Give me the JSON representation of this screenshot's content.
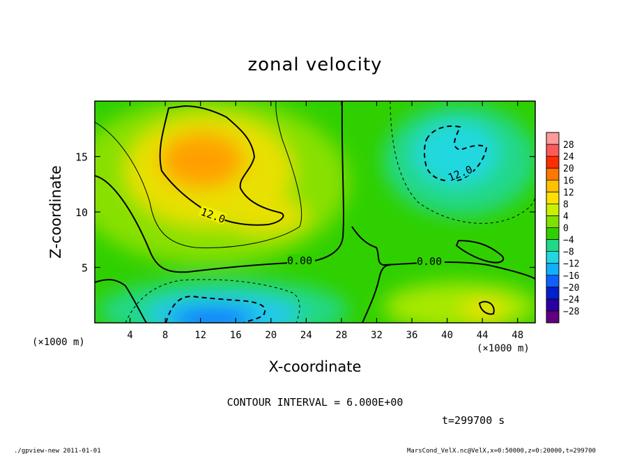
{
  "chart_data": {
    "type": "heatmap",
    "title": "zonal velocity",
    "xlabel": "X-coordinate",
    "ylabel": "Z-coordinate",
    "x_unit": "(×1000 m)",
    "x_range": [
      0,
      50
    ],
    "z_range": [
      0,
      20
    ],
    "x_ticks": [
      "4",
      "8",
      "12",
      "16",
      "20",
      "24",
      "28",
      "32",
      "36",
      "40",
      "44",
      "48"
    ],
    "y_ticks": [
      "5",
      "10",
      "15"
    ],
    "colorbar_levels": [
      "28",
      "24",
      "20",
      "16",
      "12",
      "8",
      "4",
      "0",
      "−4",
      "−8",
      "−12",
      "−16",
      "−20",
      "−24",
      "−28"
    ],
    "colorbar_colors": [
      "#ff9a9a",
      "#ff5a5a",
      "#ff2e00",
      "#ff7800",
      "#ffc000",
      "#ffe000",
      "#c8f000",
      "#80e000",
      "#30d000",
      "#20d888",
      "#20d8e0",
      "#10b0ff",
      "#1060ff",
      "#0020d0",
      "#2a00a0",
      "#600080"
    ],
    "contour_labels": [
      "12.0",
      "12.0",
      "0.00",
      "0.00"
    ],
    "contour_interval": "CONTOUR INTERVAL = 6.000E+00",
    "time": "t=299700 s",
    "regions": [
      {
        "x": 10,
        "z": 14.5,
        "value": 15
      },
      {
        "x": 13,
        "z": 1.2,
        "value": -14
      },
      {
        "x": 40,
        "z": 15.5,
        "value": -11
      },
      {
        "x": 44,
        "z": 1.5,
        "value": 9
      },
      {
        "x": 25,
        "z": 15,
        "value": 3
      }
    ]
  },
  "footer": {
    "left": "./gpview-new  2011-01-01",
    "right": "MarsCond_VelX.nc@VelX,x=0:50000,z=0:20000,t=299700"
  }
}
